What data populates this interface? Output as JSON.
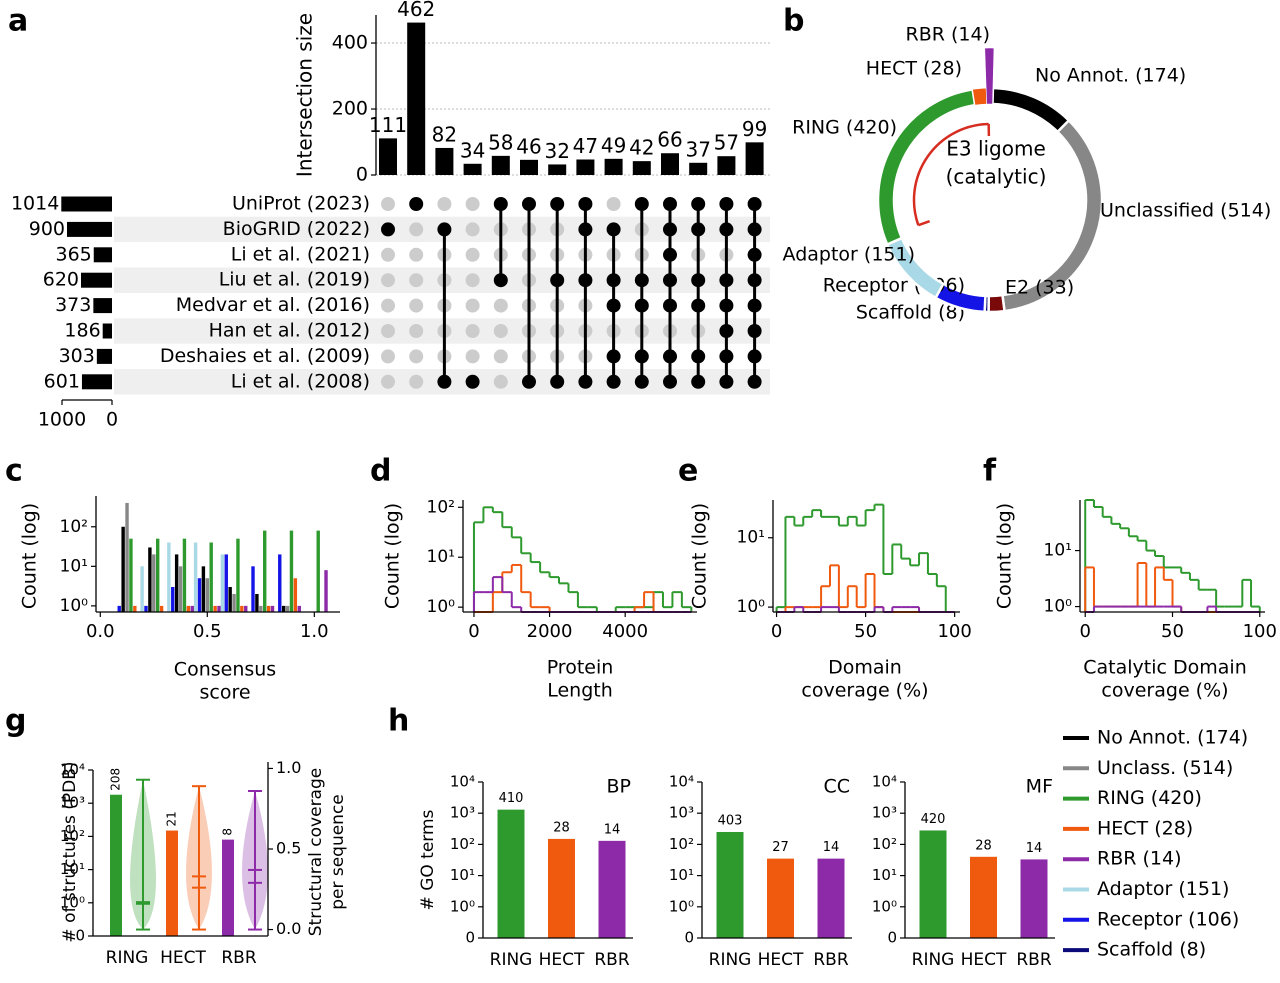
{
  "chart_data": [
    {
      "type": "upset",
      "panel": "a",
      "ylabel": "Intersection size",
      "ylim": [
        0,
        485
      ],
      "yticks": [
        0,
        200,
        400
      ],
      "grid": true,
      "color": "#000000",
      "values": [
        111,
        462,
        82,
        34,
        58,
        46,
        32,
        47,
        49,
        42,
        66,
        37,
        57,
        99
      ],
      "sets": [
        {
          "name": "UniProt (2023)",
          "size": 1014
        },
        {
          "name": "BioGRID (2022)",
          "size": 900
        },
        {
          "name": "Li et al. (2021)",
          "size": 365
        },
        {
          "name": "Liu et al. (2019)",
          "size": 620
        },
        {
          "name": "Medvar et al. (2016)",
          "size": 373
        },
        {
          "name": "Han et al. (2012)",
          "size": 186
        },
        {
          "name": "Deshaies et al. (2009)",
          "size": 303
        },
        {
          "name": "Li et al. (2008)",
          "size": 601
        }
      ],
      "membership": [
        [
          1
        ],
        [
          0
        ],
        [
          1,
          7
        ],
        [
          7
        ],
        [
          0,
          3
        ],
        [
          0,
          7
        ],
        [
          0,
          3,
          7
        ],
        [
          0,
          1,
          3,
          7
        ],
        [
          1,
          3,
          4,
          6,
          7
        ],
        [
          0,
          3,
          4,
          6,
          7
        ],
        [
          0,
          1,
          2,
          3,
          4,
          6,
          7
        ],
        [
          0,
          1,
          3,
          4,
          6,
          7
        ],
        [
          0,
          1,
          3,
          4,
          5,
          6,
          7
        ],
        [
          0,
          1,
          2,
          3,
          4,
          5,
          6,
          7
        ]
      ],
      "size_xlim": [
        0,
        1000
      ],
      "size_xticks": [
        1000,
        0
      ]
    },
    {
      "type": "donut",
      "panel": "b",
      "categories": [
        "No Annot. (174)",
        "Unclassified (514)",
        "E2 (33)",
        "Scaffold (8)",
        "Receptor (106)",
        "Adaptor (151)",
        "RING (420)",
        "HECT (28)",
        "RBR (14)"
      ],
      "values": [
        174,
        514,
        33,
        8,
        106,
        151,
        420,
        28,
        14
      ],
      "colors": [
        "#000000",
        "#878787",
        "#7a0a0a",
        "#0a0a7a",
        "#1414e6",
        "#a9d8e6",
        "#2e9a2e",
        "#f05a0f",
        "#8c2aa8"
      ],
      "annotation": [
        "E3 ligome",
        "(catalytic)"
      ],
      "annotation_color": "#d62d20"
    },
    {
      "type": "grouped_bar",
      "panel": "c",
      "ylabel": "Count (log)",
      "xlabel": [
        "Consensus",
        "score"
      ],
      "x": [
        0.125,
        0.25,
        0.375,
        0.5,
        0.625,
        0.75,
        0.875,
        1.0
      ],
      "series": [
        {
          "color": "#a9d8e6",
          "values": [
            null,
            10,
            40,
            40,
            20,
            null,
            null,
            null
          ]
        },
        {
          "color": "#1414e6",
          "values": [
            1,
            1,
            3,
            5,
            20,
            10,
            20,
            null
          ]
        },
        {
          "color": "#000000",
          "values": [
            100,
            30,
            20,
            10,
            3,
            2,
            1,
            null
          ]
        },
        {
          "color": "#878787",
          "values": [
            400,
            20,
            10,
            5,
            2,
            1,
            1,
            null
          ]
        },
        {
          "color": "#2e9a2e",
          "values": [
            50,
            50,
            50,
            40,
            50,
            80,
            80,
            80
          ]
        },
        {
          "color": "#f05a0f",
          "values": [
            1,
            1,
            1,
            1,
            1,
            1,
            5,
            null
          ]
        },
        {
          "color": "#8c2aa8",
          "values": [
            null,
            null,
            1,
            1,
            1,
            1,
            1,
            8
          ]
        }
      ],
      "xlim": [
        -0.02,
        1.12
      ],
      "xticks": [
        {
          "value": 0,
          "label": "0.0"
        },
        0.5,
        {
          "value": 1,
          "label": "1.0"
        }
      ],
      "yscale": "log",
      "ylim": [
        0.7,
        600
      ],
      "yticks": [
        {
          "value": 1,
          "label": "10⁰"
        },
        {
          "value": 10,
          "label": "10¹"
        },
        {
          "value": 100,
          "label": "10²"
        }
      ]
    },
    {
      "type": "histogram",
      "panel": "d",
      "ylabel": "Count (log)",
      "xlabel": [
        "Protein",
        "Length"
      ],
      "bins": [
        0,
        250,
        500,
        750,
        1000,
        1250,
        1500,
        1750,
        2000,
        2250,
        2500,
        2750,
        3000,
        3250,
        3500,
        3750,
        4000,
        4250,
        4500,
        4750,
        5000,
        5250,
        5500,
        5750
      ],
      "series": [
        {
          "color": "#2e9a2e",
          "values": [
            50,
            100,
            80,
            40,
            25,
            12,
            8,
            5,
            4,
            3,
            2,
            1,
            1,
            0,
            0,
            1,
            1,
            1,
            1,
            2,
            1,
            2,
            1
          ]
        },
        {
          "color": "#f05a0f",
          "values": [
            0,
            0,
            2,
            5,
            7,
            2,
            1,
            1,
            0,
            0,
            0,
            0,
            0,
            0,
            0,
            0,
            0,
            1,
            2,
            0,
            0,
            0,
            0
          ]
        },
        {
          "color": "#8c2aa8",
          "values": [
            2,
            2,
            4,
            2,
            1,
            0,
            0,
            0,
            0,
            0,
            0,
            0,
            0,
            0,
            0,
            0,
            0,
            0,
            0,
            0,
            0,
            0,
            0
          ]
        }
      ],
      "xlim": [
        -290,
        5900
      ],
      "xticks": [
        0,
        2000,
        4000
      ],
      "yscale": "log",
      "ylim": [
        0.8,
        140
      ],
      "yticks": [
        {
          "value": 1,
          "label": "10⁰"
        },
        {
          "value": 10,
          "label": "10¹"
        },
        {
          "value": 100,
          "label": "10²"
        }
      ]
    },
    {
      "type": "histogram",
      "panel": "e",
      "ylabel": "Count (log)",
      "xlabel": [
        "Domain",
        "coverage (%)"
      ],
      "bins": [
        0,
        5,
        10,
        15,
        20,
        25,
        30,
        35,
        40,
        45,
        50,
        55,
        60,
        65,
        70,
        75,
        80,
        85,
        90,
        95,
        100
      ],
      "series": [
        {
          "color": "#2e9a2e",
          "values": [
            1,
            20,
            15,
            20,
            25,
            20,
            20,
            15,
            20,
            15,
            25,
            30,
            3,
            8,
            5,
            4,
            6,
            3,
            2,
            0
          ]
        },
        {
          "color": "#f05a0f",
          "values": [
            0,
            1,
            1,
            1,
            1,
            2,
            4,
            1,
            2,
            1,
            3,
            1,
            0,
            0,
            0,
            0,
            0,
            0,
            0,
            0
          ]
        },
        {
          "color": "#8c2aa8",
          "values": [
            0,
            0,
            1,
            0,
            0,
            1,
            1,
            0,
            0,
            0,
            0,
            1,
            0,
            1,
            1,
            1,
            0,
            0,
            0,
            0
          ]
        }
      ],
      "xlim": [
        -2,
        103
      ],
      "xticks": [
        0,
        50,
        100
      ],
      "yscale": "log",
      "ylim": [
        0.85,
        35
      ],
      "yticks": [
        {
          "value": 1,
          "label": "10⁰"
        },
        {
          "value": 10,
          "label": "10¹"
        }
      ]
    },
    {
      "type": "histogram",
      "panel": "f",
      "ylabel": "Count (log)",
      "xlabel": [
        "Catalytic Domain",
        "coverage (%)"
      ],
      "bins": [
        0,
        5,
        10,
        15,
        20,
        25,
        30,
        35,
        40,
        45,
        50,
        55,
        60,
        65,
        70,
        75,
        80,
        85,
        90,
        95,
        100
      ],
      "series": [
        {
          "color": "#2e9a2e",
          "values": [
            80,
            60,
            40,
            30,
            25,
            18,
            15,
            10,
            8,
            5,
            5,
            4,
            3,
            2,
            2,
            1,
            1,
            1,
            3,
            1
          ]
        },
        {
          "color": "#f05a0f",
          "values": [
            5,
            1,
            1,
            1,
            1,
            1,
            6,
            1,
            5,
            3,
            1,
            0,
            0,
            0,
            0,
            0,
            0,
            0,
            0,
            0
          ]
        },
        {
          "color": "#8c2aa8",
          "values": [
            0,
            1,
            1,
            1,
            1,
            1,
            1,
            1,
            1,
            1,
            1,
            0,
            0,
            0,
            1,
            0,
            0,
            0,
            0,
            0
          ]
        }
      ],
      "xlim": [
        -3,
        103
      ],
      "xticks": [
        0,
        50,
        100
      ],
      "yscale": "log",
      "ylim": [
        0.8,
        80
      ],
      "yticks": [
        {
          "value": 1,
          "label": "10⁰"
        },
        {
          "value": 10,
          "label": "10¹"
        }
      ]
    },
    {
      "type": "bar_violin",
      "panel": "g",
      "ylabel": "# of structures (PDB)",
      "y2label": [
        "Structural coverage",
        "per sequence"
      ],
      "categories": [
        "RING",
        "HECT",
        "RBR"
      ],
      "values": [
        1800,
        150,
        80
      ],
      "bar_annotations": [
        208,
        21,
        8
      ],
      "colors": [
        "#2e9a2e",
        "#f05a0f",
        "#8c2aa8"
      ],
      "violins": [
        {
          "min": 0,
          "max": 0.93,
          "median": 0.16,
          "mean": 0.17
        },
        {
          "min": 0,
          "max": 0.89,
          "median": 0.26,
          "mean": 0.33
        },
        {
          "min": 0,
          "max": 0.86,
          "median": 0.29,
          "mean": 0.37
        }
      ],
      "yscale": "symlog",
      "ylim": [
        0,
        10000
      ],
      "yticks": [
        0,
        {
          "value": 1,
          "label": "10⁰"
        },
        {
          "value": 10,
          "label": "10¹"
        },
        {
          "value": 100,
          "label": "10²"
        },
        {
          "value": 1000,
          "label": "10³"
        },
        {
          "value": 10000,
          "label": "10⁴"
        }
      ],
      "y2lim": [
        -0.04,
        1.04
      ],
      "y2ticks": [
        {
          "value": 0,
          "label": "0.0"
        },
        0.5,
        {
          "value": 1,
          "label": "1.0"
        }
      ]
    },
    {
      "type": "bar",
      "panel": "h",
      "title": "BP",
      "ylabel": "# GO terms",
      "categories": [
        "RING",
        "HECT",
        "RBR"
      ],
      "values": [
        1300,
        150,
        130
      ],
      "bar_annotations": [
        410,
        28,
        14
      ],
      "colors": [
        "#2e9a2e",
        "#f05a0f",
        "#8c2aa8"
      ],
      "yscale": "symlog",
      "ylim": [
        0,
        10000
      ],
      "yticks": [
        0,
        {
          "value": 1,
          "label": "10⁰"
        },
        {
          "value": 10,
          "label": "10¹"
        },
        {
          "value": 100,
          "label": "10²"
        },
        {
          "value": 1000,
          "label": "10³"
        },
        {
          "value": 10000,
          "label": "10⁴"
        }
      ]
    },
    {
      "type": "bar",
      "title": "CC",
      "categories": [
        "RING",
        "HECT",
        "RBR"
      ],
      "values": [
        250,
        35,
        35
      ],
      "bar_annotations": [
        403,
        27,
        14
      ],
      "colors": [
        "#2e9a2e",
        "#f05a0f",
        "#8c2aa8"
      ],
      "yscale": "symlog",
      "ylim": [
        0,
        10000
      ],
      "yticks": [
        0,
        {
          "value": 1,
          "label": "10⁰"
        },
        {
          "value": 10,
          "label": "10¹"
        },
        {
          "value": 100,
          "label": "10²"
        },
        {
          "value": 1000,
          "label": "10³"
        },
        {
          "value": 10000,
          "label": "10⁴"
        }
      ]
    },
    {
      "type": "bar",
      "title": "MF",
      "categories": [
        "RING",
        "HECT",
        "RBR"
      ],
      "values": [
        280,
        40,
        33
      ],
      "bar_annotations": [
        420,
        28,
        14
      ],
      "colors": [
        "#2e9a2e",
        "#f05a0f",
        "#8c2aa8"
      ],
      "yscale": "symlog",
      "ylim": [
        0,
        10000
      ],
      "yticks": [
        0,
        {
          "value": 1,
          "label": "10⁰"
        },
        {
          "value": 10,
          "label": "10¹"
        },
        {
          "value": 100,
          "label": "10²"
        },
        {
          "value": 1000,
          "label": "10³"
        },
        {
          "value": 10000,
          "label": "10⁴"
        }
      ]
    },
    {
      "type": "legend",
      "series": [
        {
          "name": "No Annot. (174)",
          "color": "#000000"
        },
        {
          "name": "Unclass. (514)",
          "color": "#878787"
        },
        {
          "name": "RING (420)",
          "color": "#2e9a2e"
        },
        {
          "name": "HECT (28)",
          "color": "#f05a0f"
        },
        {
          "name": "RBR (14)",
          "color": "#8c2aa8"
        },
        {
          "name": "Adaptor (151)",
          "color": "#a9d8e6"
        },
        {
          "name": "Receptor (106)",
          "color": "#1414e6"
        },
        {
          "name": "Scaffold (8)",
          "color": "#0a0a7a"
        }
      ]
    }
  ]
}
